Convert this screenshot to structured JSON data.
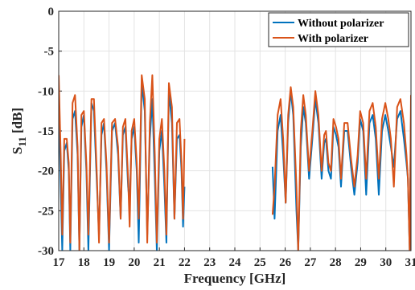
{
  "chart_data": {
    "type": "line",
    "title": "",
    "xlabel": "Frequency [GHz]",
    "ylabel_main": "S",
    "ylabel_sub": "11",
    "ylabel_unit": "[dB]",
    "xlim": [
      17,
      31
    ],
    "ylim": [
      -30,
      0
    ],
    "xticks": [
      17,
      18,
      19,
      20,
      21,
      22,
      23,
      24,
      25,
      26,
      27,
      28,
      29,
      30,
      31
    ],
    "yticks": [
      0,
      -5,
      -10,
      -15,
      -20,
      -25,
      -30
    ],
    "grid": true,
    "legend_position": "top-right",
    "series": [
      {
        "name": "Without polarizer",
        "color": "#0072BD",
        "segments": [
          [
            [
              17.0,
              -11.0
            ],
            [
              17.08,
              -22
            ],
            [
              17.14,
              -30
            ],
            [
              17.22,
              -17.5
            ],
            [
              17.32,
              -16.5
            ],
            [
              17.4,
              -20
            ],
            [
              17.46,
              -30
            ],
            [
              17.55,
              -13.5
            ],
            [
              17.65,
              -12.5
            ],
            [
              17.75,
              -18
            ],
            [
              17.82,
              -30
            ],
            [
              17.9,
              -14.5
            ],
            [
              18.0,
              -13.0
            ],
            [
              18.1,
              -20
            ],
            [
              18.18,
              -30
            ],
            [
              18.3,
              -11.5
            ],
            [
              18.4,
              -12.5
            ],
            [
              18.52,
              -22
            ],
            [
              18.6,
              -28
            ],
            [
              18.7,
              -15.5
            ],
            [
              18.8,
              -14
            ],
            [
              18.9,
              -20
            ],
            [
              19.0,
              -30
            ],
            [
              19.12,
              -15
            ],
            [
              19.24,
              -14
            ],
            [
              19.36,
              -18
            ],
            [
              19.46,
              -26
            ],
            [
              19.55,
              -15.5
            ],
            [
              19.65,
              -14.5
            ],
            [
              19.76,
              -22
            ],
            [
              19.82,
              -24
            ],
            [
              19.9,
              -16
            ],
            [
              20.0,
              -14.5
            ],
            [
              20.1,
              -20
            ],
            [
              20.18,
              -29
            ],
            [
              20.3,
              -9
            ],
            [
              20.42,
              -12.5
            ],
            [
              20.52,
              -28
            ],
            [
              20.62,
              -16
            ],
            [
              20.72,
              -11
            ],
            [
              20.82,
              -21
            ],
            [
              20.9,
              -30
            ],
            [
              21.0,
              -17.5
            ],
            [
              21.1,
              -15
            ],
            [
              21.2,
              -22
            ],
            [
              21.28,
              -29
            ],
            [
              21.38,
              -10
            ],
            [
              21.5,
              -14
            ],
            [
              21.6,
              -26
            ],
            [
              21.7,
              -16
            ],
            [
              21.8,
              -15.5
            ],
            [
              21.88,
              -20
            ],
            [
              21.94,
              -27
            ],
            [
              22.0,
              -22
            ]
          ],
          [
            [
              25.5,
              -19.5
            ],
            [
              25.58,
              -26
            ],
            [
              25.7,
              -15
            ],
            [
              25.82,
              -13
            ],
            [
              25.92,
              -18
            ],
            [
              26.02,
              -24
            ],
            [
              26.12,
              -14
            ],
            [
              26.22,
              -10
            ],
            [
              26.32,
              -13
            ],
            [
              26.45,
              -25
            ],
            [
              26.52,
              -30
            ],
            [
              26.62,
              -17
            ],
            [
              26.72,
              -12
            ],
            [
              26.82,
              -14
            ],
            [
              26.95,
              -21
            ],
            [
              27.08,
              -16
            ],
            [
              27.2,
              -11
            ],
            [
              27.32,
              -14
            ],
            [
              27.45,
              -21
            ],
            [
              27.55,
              -16.5
            ],
            [
              27.62,
              -16
            ],
            [
              27.72,
              -20
            ],
            [
              27.82,
              -21
            ],
            [
              27.92,
              -14.5
            ],
            [
              28.02,
              -15.5
            ],
            [
              28.12,
              -17
            ],
            [
              28.22,
              -22
            ],
            [
              28.35,
              -15
            ],
            [
              28.48,
              -15
            ],
            [
              28.62,
              -19.5
            ],
            [
              28.75,
              -23
            ],
            [
              28.88,
              -19
            ],
            [
              28.98,
              -13.5
            ],
            [
              29.1,
              -15
            ],
            [
              29.22,
              -23
            ],
            [
              29.35,
              -14
            ],
            [
              29.48,
              -13
            ],
            [
              29.6,
              -16
            ],
            [
              29.72,
              -23
            ],
            [
              29.85,
              -15
            ],
            [
              29.98,
              -13
            ],
            [
              30.1,
              -15
            ],
            [
              30.2,
              -17
            ],
            [
              30.32,
              -19.5
            ],
            [
              30.45,
              -13.5
            ],
            [
              30.58,
              -12.5
            ],
            [
              30.72,
              -16
            ],
            [
              30.82,
              -19
            ],
            [
              30.88,
              -21
            ],
            [
              30.95,
              -30
            ],
            [
              31.0,
              -13
            ]
          ]
        ]
      },
      {
        "name": "With polarizer",
        "color": "#D95319",
        "segments": [
          [
            [
              17.0,
              -8.0
            ],
            [
              17.08,
              -18
            ],
            [
              17.14,
              -28
            ],
            [
              17.22,
              -16
            ],
            [
              17.32,
              -16
            ],
            [
              17.4,
              -19
            ],
            [
              17.46,
              -29
            ],
            [
              17.55,
              -11.5
            ],
            [
              17.65,
              -10.5
            ],
            [
              17.75,
              -17
            ],
            [
              17.82,
              -30
            ],
            [
              17.9,
              -13
            ],
            [
              18.0,
              -12.5
            ],
            [
              18.1,
              -19
            ],
            [
              18.18,
              -28
            ],
            [
              18.3,
              -11
            ],
            [
              18.4,
              -11
            ],
            [
              18.52,
              -21
            ],
            [
              18.6,
              -29
            ],
            [
              18.7,
              -14
            ],
            [
              18.8,
              -13.5
            ],
            [
              18.9,
              -19
            ],
            [
              19.0,
              -29
            ],
            [
              19.12,
              -14
            ],
            [
              19.24,
              -13.5
            ],
            [
              19.36,
              -17
            ],
            [
              19.46,
              -26
            ],
            [
              19.55,
              -14.5
            ],
            [
              19.65,
              -13.5
            ],
            [
              19.76,
              -21
            ],
            [
              19.82,
              -27
            ],
            [
              19.9,
              -15
            ],
            [
              20.0,
              -13.5
            ],
            [
              20.1,
              -19
            ],
            [
              20.18,
              -26
            ],
            [
              20.3,
              -8
            ],
            [
              20.42,
              -11
            ],
            [
              20.52,
              -29
            ],
            [
              20.62,
              -14
            ],
            [
              20.72,
              -8
            ],
            [
              20.82,
              -18
            ],
            [
              20.9,
              -29
            ],
            [
              21.0,
              -16
            ],
            [
              21.1,
              -13.5
            ],
            [
              21.2,
              -20
            ],
            [
              21.28,
              -28
            ],
            [
              21.38,
              -9
            ],
            [
              21.5,
              -12
            ],
            [
              21.6,
              -26
            ],
            [
              21.7,
              -14
            ],
            [
              21.8,
              -13.5
            ],
            [
              21.88,
              -19
            ],
            [
              21.94,
              -26
            ],
            [
              22.0,
              -16
            ]
          ],
          [
            [
              25.5,
              -25.5
            ],
            [
              25.58,
              -22
            ],
            [
              25.7,
              -13
            ],
            [
              25.82,
              -11
            ],
            [
              25.92,
              -16
            ],
            [
              26.02,
              -24
            ],
            [
              26.12,
              -13
            ],
            [
              26.22,
              -9.5
            ],
            [
              26.32,
              -12
            ],
            [
              26.45,
              -22
            ],
            [
              26.52,
              -30
            ],
            [
              26.62,
              -15
            ],
            [
              26.72,
              -10.5
            ],
            [
              26.82,
              -13
            ],
            [
              26.95,
              -20
            ],
            [
              27.08,
              -15
            ],
            [
              27.2,
              -10
            ],
            [
              27.32,
              -13
            ],
            [
              27.45,
              -20
            ],
            [
              27.55,
              -15.5
            ],
            [
              27.62,
              -15
            ],
            [
              27.72,
              -19
            ],
            [
              27.82,
              -20
            ],
            [
              27.92,
              -13.5
            ],
            [
              28.02,
              -14.5
            ],
            [
              28.12,
              -16
            ],
            [
              28.22,
              -21
            ],
            [
              28.35,
              -14
            ],
            [
              28.48,
              -14
            ],
            [
              28.62,
              -18.5
            ],
            [
              28.75,
              -22
            ],
            [
              28.88,
              -18
            ],
            [
              28.98,
              -12.5
            ],
            [
              29.1,
              -14
            ],
            [
              29.22,
              -21
            ],
            [
              29.35,
              -12.5
            ],
            [
              29.48,
              -11.5
            ],
            [
              29.6,
              -14.5
            ],
            [
              29.72,
              -21
            ],
            [
              29.85,
              -13.5
            ],
            [
              29.98,
              -11.5
            ],
            [
              30.1,
              -13.5
            ],
            [
              30.2,
              -16
            ],
            [
              30.32,
              -22
            ],
            [
              30.45,
              -12
            ],
            [
              30.58,
              -11
            ],
            [
              30.72,
              -14
            ],
            [
              30.82,
              -18
            ],
            [
              30.88,
              -21
            ],
            [
              30.95,
              -30
            ],
            [
              31.0,
              -10.5
            ]
          ]
        ]
      }
    ]
  }
}
